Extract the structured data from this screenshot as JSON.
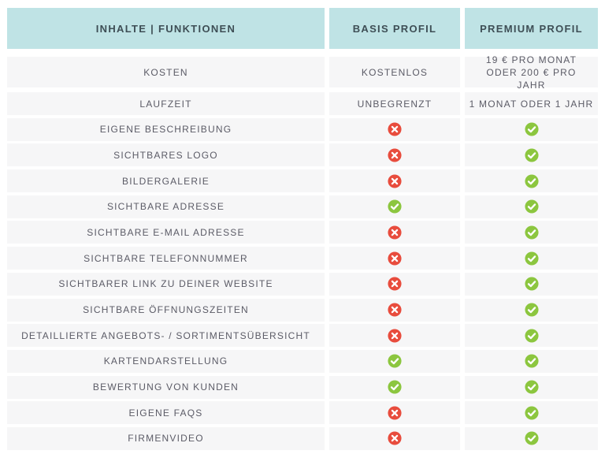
{
  "header": {
    "col1": "INHALTE | FUNKTIONEN",
    "col2": "BASIS PROFIL",
    "col3": "PREMIUM PROFIL"
  },
  "text_rows": [
    {
      "feature": "KOSTEN",
      "basis": "KOSTENLOS",
      "premium": "19 € PRO MONAT ODER 200 € PRO JAHR"
    },
    {
      "feature": "LAUFZEIT",
      "basis": "UNBEGRENZT",
      "premium": "1 MONAT ODER 1 JAHR"
    }
  ],
  "feature_rows": [
    {
      "feature": "EIGENE BESCHREIBUNG",
      "basis": "cross-icon",
      "premium": "check-icon"
    },
    {
      "feature": "SICHTBARES LOGO",
      "basis": "cross-icon",
      "premium": "check-icon"
    },
    {
      "feature": "BILDERGALERIE",
      "basis": "cross-icon",
      "premium": "check-icon"
    },
    {
      "feature": "SICHTBARE ADRESSE",
      "basis": "check-icon",
      "premium": "check-icon"
    },
    {
      "feature": "SICHTBARE E-MAIL ADRESSE",
      "basis": "cross-icon",
      "premium": "check-icon"
    },
    {
      "feature": "SICHTBARE TELEFONNUMMER",
      "basis": "cross-icon",
      "premium": "check-icon"
    },
    {
      "feature": "SICHTBARER LINK ZU DEINER WEBSITE",
      "basis": "cross-icon",
      "premium": "check-icon"
    },
    {
      "feature": "SICHTBARE ÖFFNUNGSZEITEN",
      "basis": "cross-icon",
      "premium": "check-icon"
    },
    {
      "feature": "DETAILLIERTE ANGEBOTS- / SORTIMENTSÜBERSICHT",
      "basis": "cross-icon",
      "premium": "check-icon"
    },
    {
      "feature": "KARTENDARSTELLUNG",
      "basis": "check-icon",
      "premium": "check-icon"
    },
    {
      "feature": "BEWERTUNG VON KUNDEN",
      "basis": "check-icon",
      "premium": "check-icon"
    },
    {
      "feature": "EIGENE FAQS",
      "basis": "cross-icon",
      "premium": "check-icon"
    },
    {
      "feature": "FIRMENVIDEO",
      "basis": "cross-icon",
      "premium": "check-icon"
    }
  ],
  "colors": {
    "header_bg": "#bfe3e5",
    "row_bg": "#f6f6f7",
    "check": "#8cc63f",
    "cross": "#e84c3d"
  }
}
